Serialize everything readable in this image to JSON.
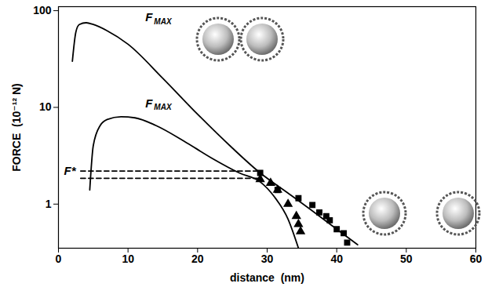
{
  "chart_data": {
    "type": "line",
    "x_label": "distance  (nm)",
    "y_label": "FORCE  (10⁻¹² N)",
    "log": "y",
    "grid": false,
    "xlim": [
      0,
      60
    ],
    "ylim": [
      0.35,
      110
    ],
    "xticks": [
      0,
      10,
      20,
      30,
      40,
      50,
      60
    ],
    "yticks": [
      1,
      10,
      100
    ],
    "series": [
      {
        "type": "line",
        "color": "#000000",
        "line_style": "solid",
        "x": [
          2,
          2.5,
          3,
          4,
          5,
          7,
          10,
          15,
          20,
          25,
          29,
          33,
          37,
          40,
          43
        ],
        "values": [
          30,
          60,
          72,
          75,
          72,
          62,
          45,
          20,
          8.5,
          3.8,
          2.1,
          1.3,
          0.8,
          0.55,
          0.38
        ]
      },
      {
        "type": "line",
        "color": "#000000",
        "line_style": "solid",
        "x": [
          4.5,
          5,
          6,
          7,
          9,
          11,
          14,
          18,
          22,
          26,
          29,
          31,
          33,
          34.5
        ],
        "values": [
          1.4,
          4,
          6.5,
          7.5,
          8,
          7.8,
          6.5,
          4.5,
          3,
          2.1,
          1.7,
          1.2,
          0.7,
          0.35
        ]
      },
      {
        "type": "line",
        "color": "#000000",
        "line_style": "dashed",
        "x": [
          3.2,
          29
        ],
        "values": [
          2.2,
          2.2
        ]
      },
      {
        "type": "line",
        "color": "#000000",
        "line_style": "dashed",
        "x": [
          3.2,
          29
        ],
        "values": [
          1.85,
          1.85
        ]
      },
      {
        "type": "scatter",
        "color": "#000000",
        "marker": "square",
        "x": [
          29,
          31.5,
          34.5,
          36.5,
          37.5,
          38.5,
          39,
          40,
          41,
          41.5
        ],
        "values": [
          2.1,
          1.4,
          1.15,
          0.98,
          0.82,
          0.75,
          0.68,
          0.55,
          0.5,
          0.4
        ]
      },
      {
        "type": "scatter",
        "color": "#000000",
        "marker": "triangle",
        "x": [
          29,
          30.5,
          31.5,
          33,
          34.2,
          34.5,
          34.8
        ],
        "values": [
          1.8,
          1.65,
          1.4,
          1.0,
          0.75,
          0.62,
          0.52
        ]
      }
    ],
    "annotations": [
      {
        "text": "F",
        "sub": "MAX",
        "x": 12.5,
        "y": 85
      },
      {
        "text": "F",
        "sub": "MAX",
        "x": 12.5,
        "y": 11
      },
      {
        "text": "F*",
        "x": 0.8,
        "y": 2.2
      }
    ]
  }
}
